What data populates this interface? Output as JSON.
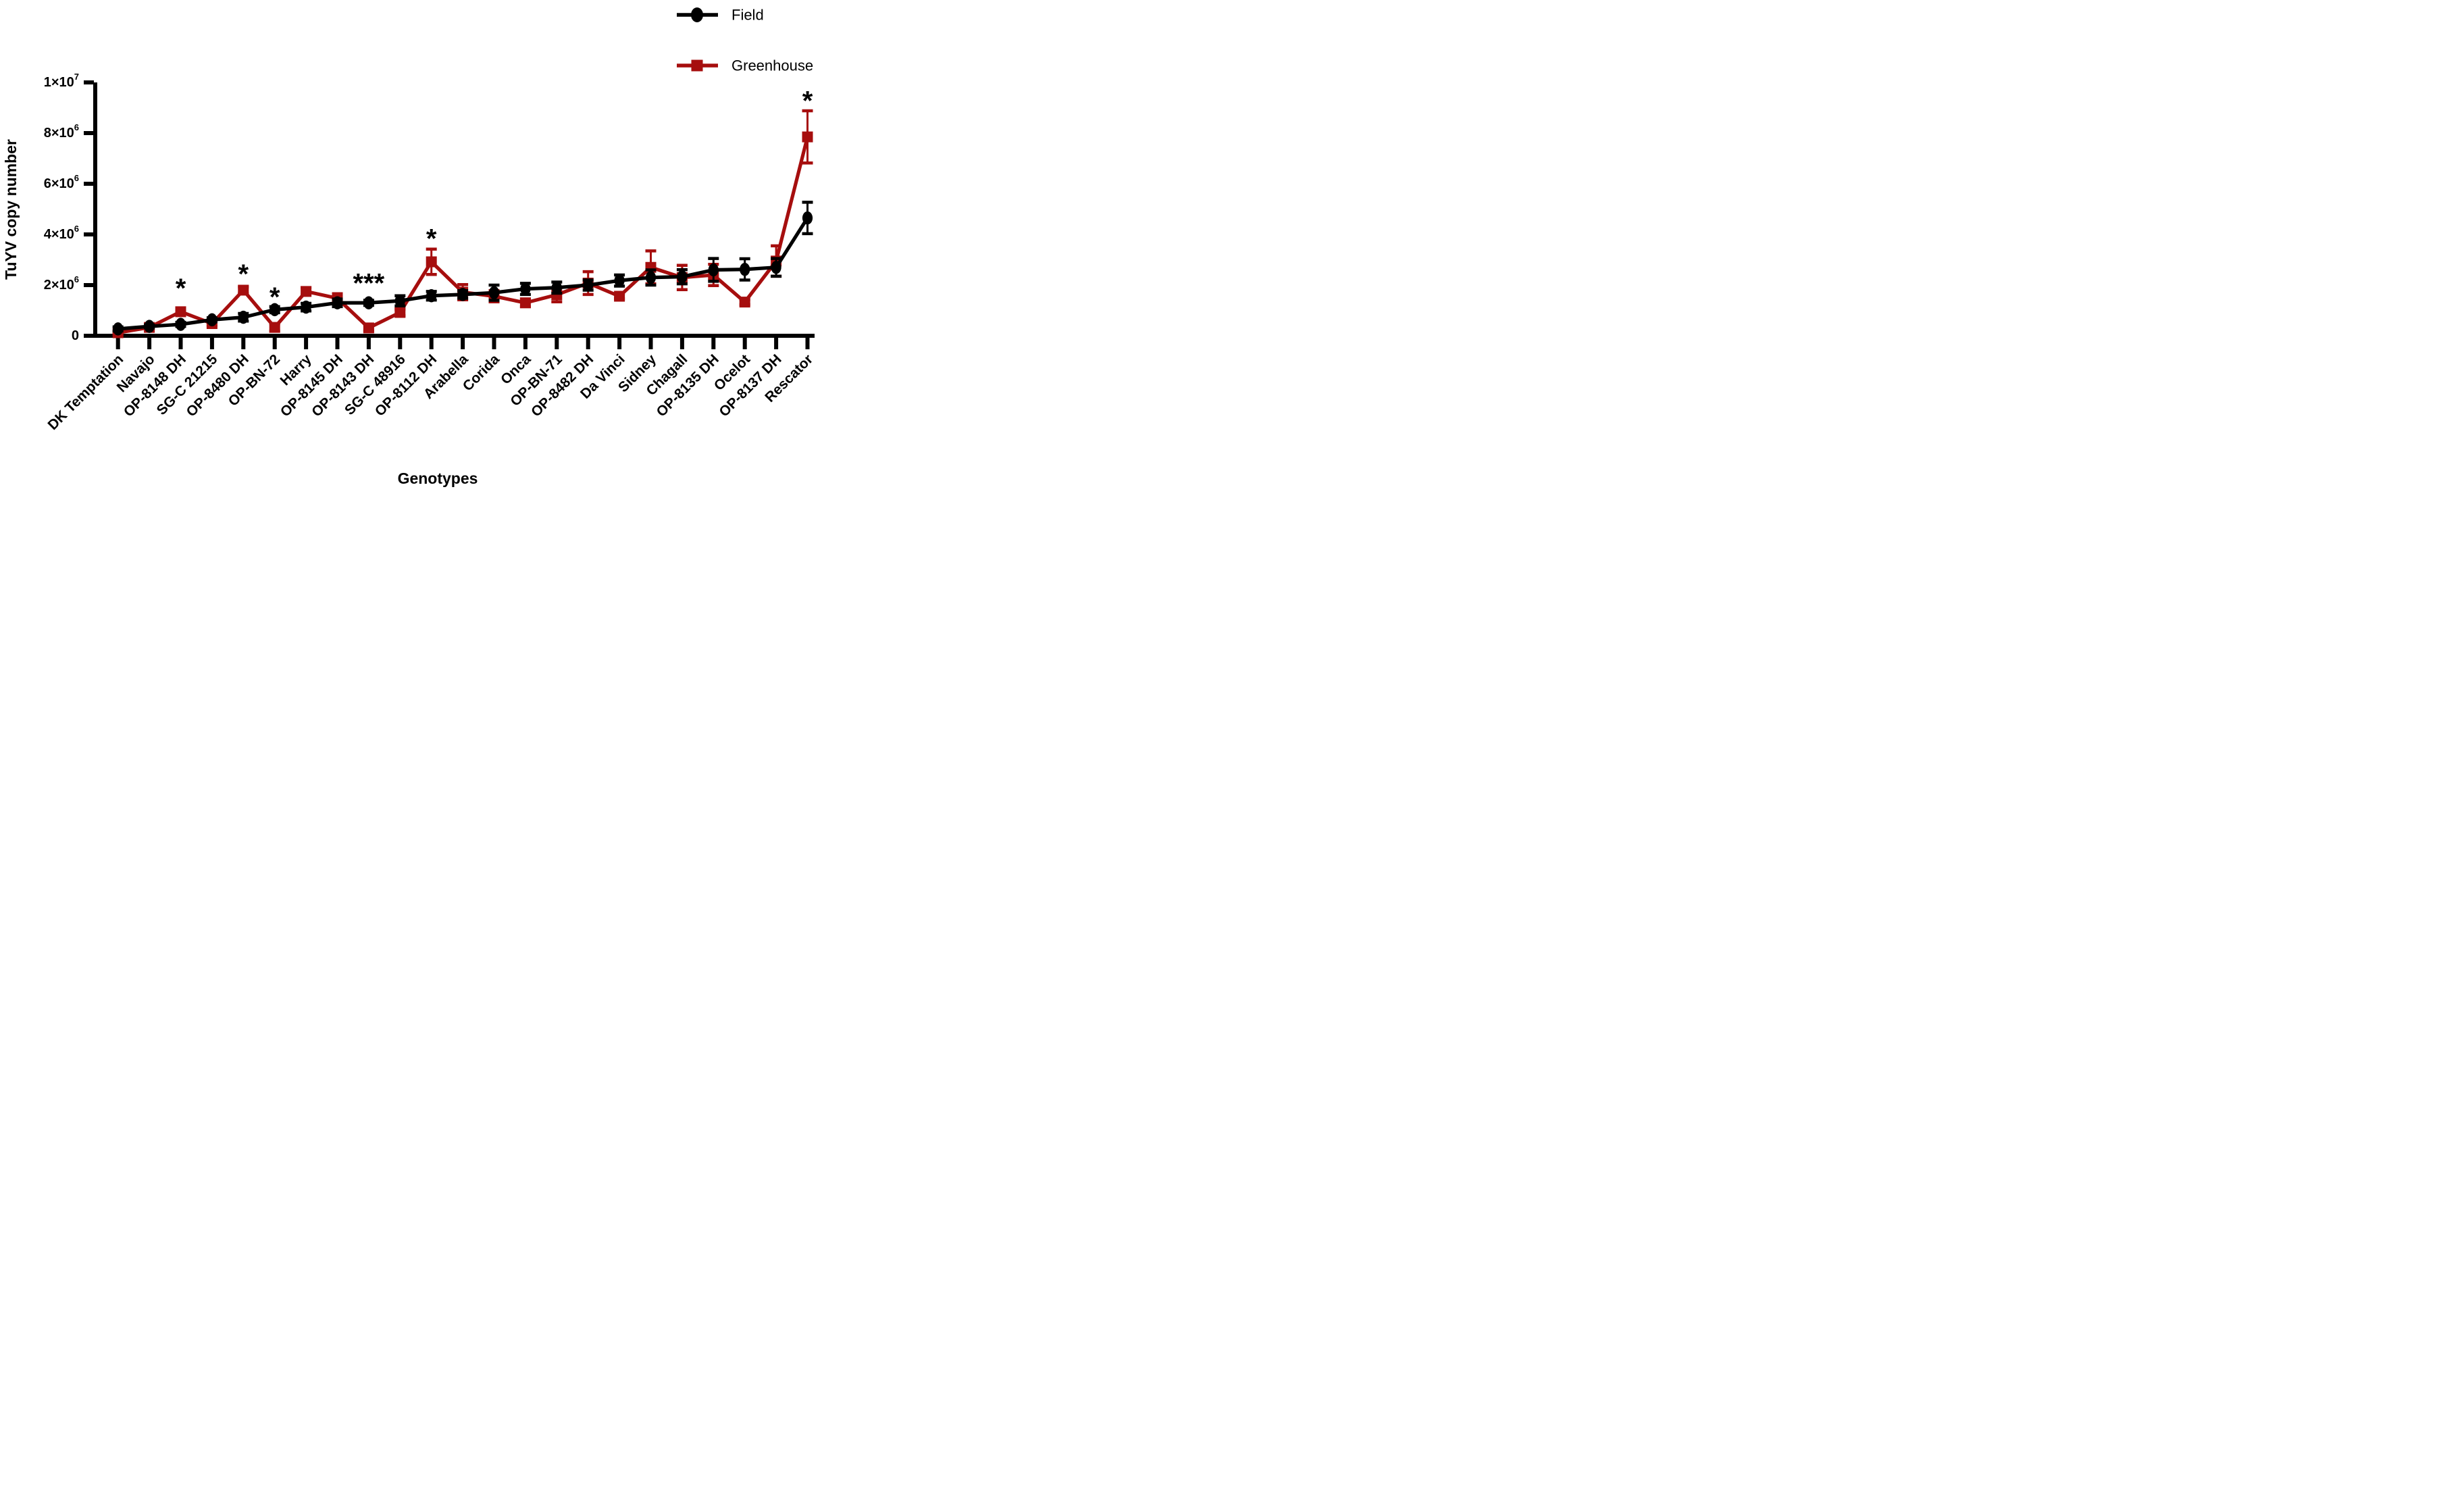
{
  "chart_data": {
    "type": "line",
    "title": "",
    "xlabel": "Genotypes",
    "ylabel": "TuYV copy number",
    "ylim": [
      0,
      10000000
    ],
    "grid": false,
    "legend_position": "top-right",
    "yticks": [
      {
        "value": 0,
        "label": "0",
        "sup": ""
      },
      {
        "value": 2000000,
        "label": "2×10",
        "sup": "6"
      },
      {
        "value": 4000000,
        "label": "4×10",
        "sup": "6"
      },
      {
        "value": 6000000,
        "label": "6×10",
        "sup": "6"
      },
      {
        "value": 8000000,
        "label": "8×10",
        "sup": "6"
      },
      {
        "value": 10000000,
        "label": "1×10",
        "sup": "7"
      }
    ],
    "categories": [
      "DK Temptation",
      "Navajo",
      "OP-8148 DH",
      "SG-C 21215",
      "OP-8480 DH",
      "OP-BN-72",
      "Harry",
      "OP-8145 DH",
      "OP-8143 DH",
      "SG-C 48916",
      "OP-8112 DH",
      "Arabella",
      "Corida",
      "Onca",
      "OP-BN-71",
      "OP-8482 DH",
      "Da Vinci",
      "Sidney",
      "Chagall",
      "OP-8135 DH",
      "Ocelot",
      "OP-8137 DH",
      "Rescator"
    ],
    "series": [
      {
        "name": "Greenhouse",
        "marker": "square",
        "color": "#A60E0E",
        "values": [
          120000,
          330000,
          950000,
          480000,
          1800000,
          330000,
          1750000,
          1480000,
          310000,
          920000,
          2920000,
          1720000,
          1560000,
          1300000,
          1620000,
          2080000,
          1560000,
          2700000,
          2300000,
          2400000,
          1330000,
          2950000,
          7850000
        ],
        "errors": [
          60000,
          50000,
          150000,
          90000,
          130000,
          150000,
          150000,
          180000,
          120000,
          130000,
          500000,
          300000,
          220000,
          150000,
          280000,
          450000,
          100000,
          650000,
          480000,
          420000,
          100000,
          600000,
          1030000
        ]
      },
      {
        "name": "Field",
        "marker": "circle",
        "color": "#000000",
        "values": [
          270000,
          370000,
          450000,
          630000,
          730000,
          1030000,
          1130000,
          1300000,
          1300000,
          1380000,
          1580000,
          1630000,
          1700000,
          1850000,
          1900000,
          2000000,
          2180000,
          2300000,
          2330000,
          2600000,
          2620000,
          2700000,
          4650000
        ],
        "errors": [
          80000,
          60000,
          80000,
          80000,
          150000,
          120000,
          150000,
          150000,
          100000,
          200000,
          170000,
          150000,
          300000,
          220000,
          220000,
          200000,
          220000,
          300000,
          280000,
          450000,
          420000,
          350000,
          620000
        ]
      }
    ],
    "significance": [
      {
        "category": "OP-8148 DH",
        "label": "*",
        "y": 1900000
      },
      {
        "category": "OP-8480 DH",
        "label": "*",
        "y": 2450000
      },
      {
        "category": "OP-BN-72",
        "label": "*",
        "y": 1550000
      },
      {
        "category": "OP-8143 DH",
        "label": "***",
        "y": 2100000
      },
      {
        "category": "OP-8112 DH",
        "label": "*",
        "y": 3850000
      },
      {
        "category": "Rescator",
        "label": "*",
        "y": 9300000
      }
    ]
  },
  "legend": {
    "items": [
      {
        "label": "Field",
        "color": "#000000",
        "marker": "circle"
      },
      {
        "label": "Greenhouse",
        "color": "#A60E0E",
        "marker": "square"
      }
    ]
  }
}
